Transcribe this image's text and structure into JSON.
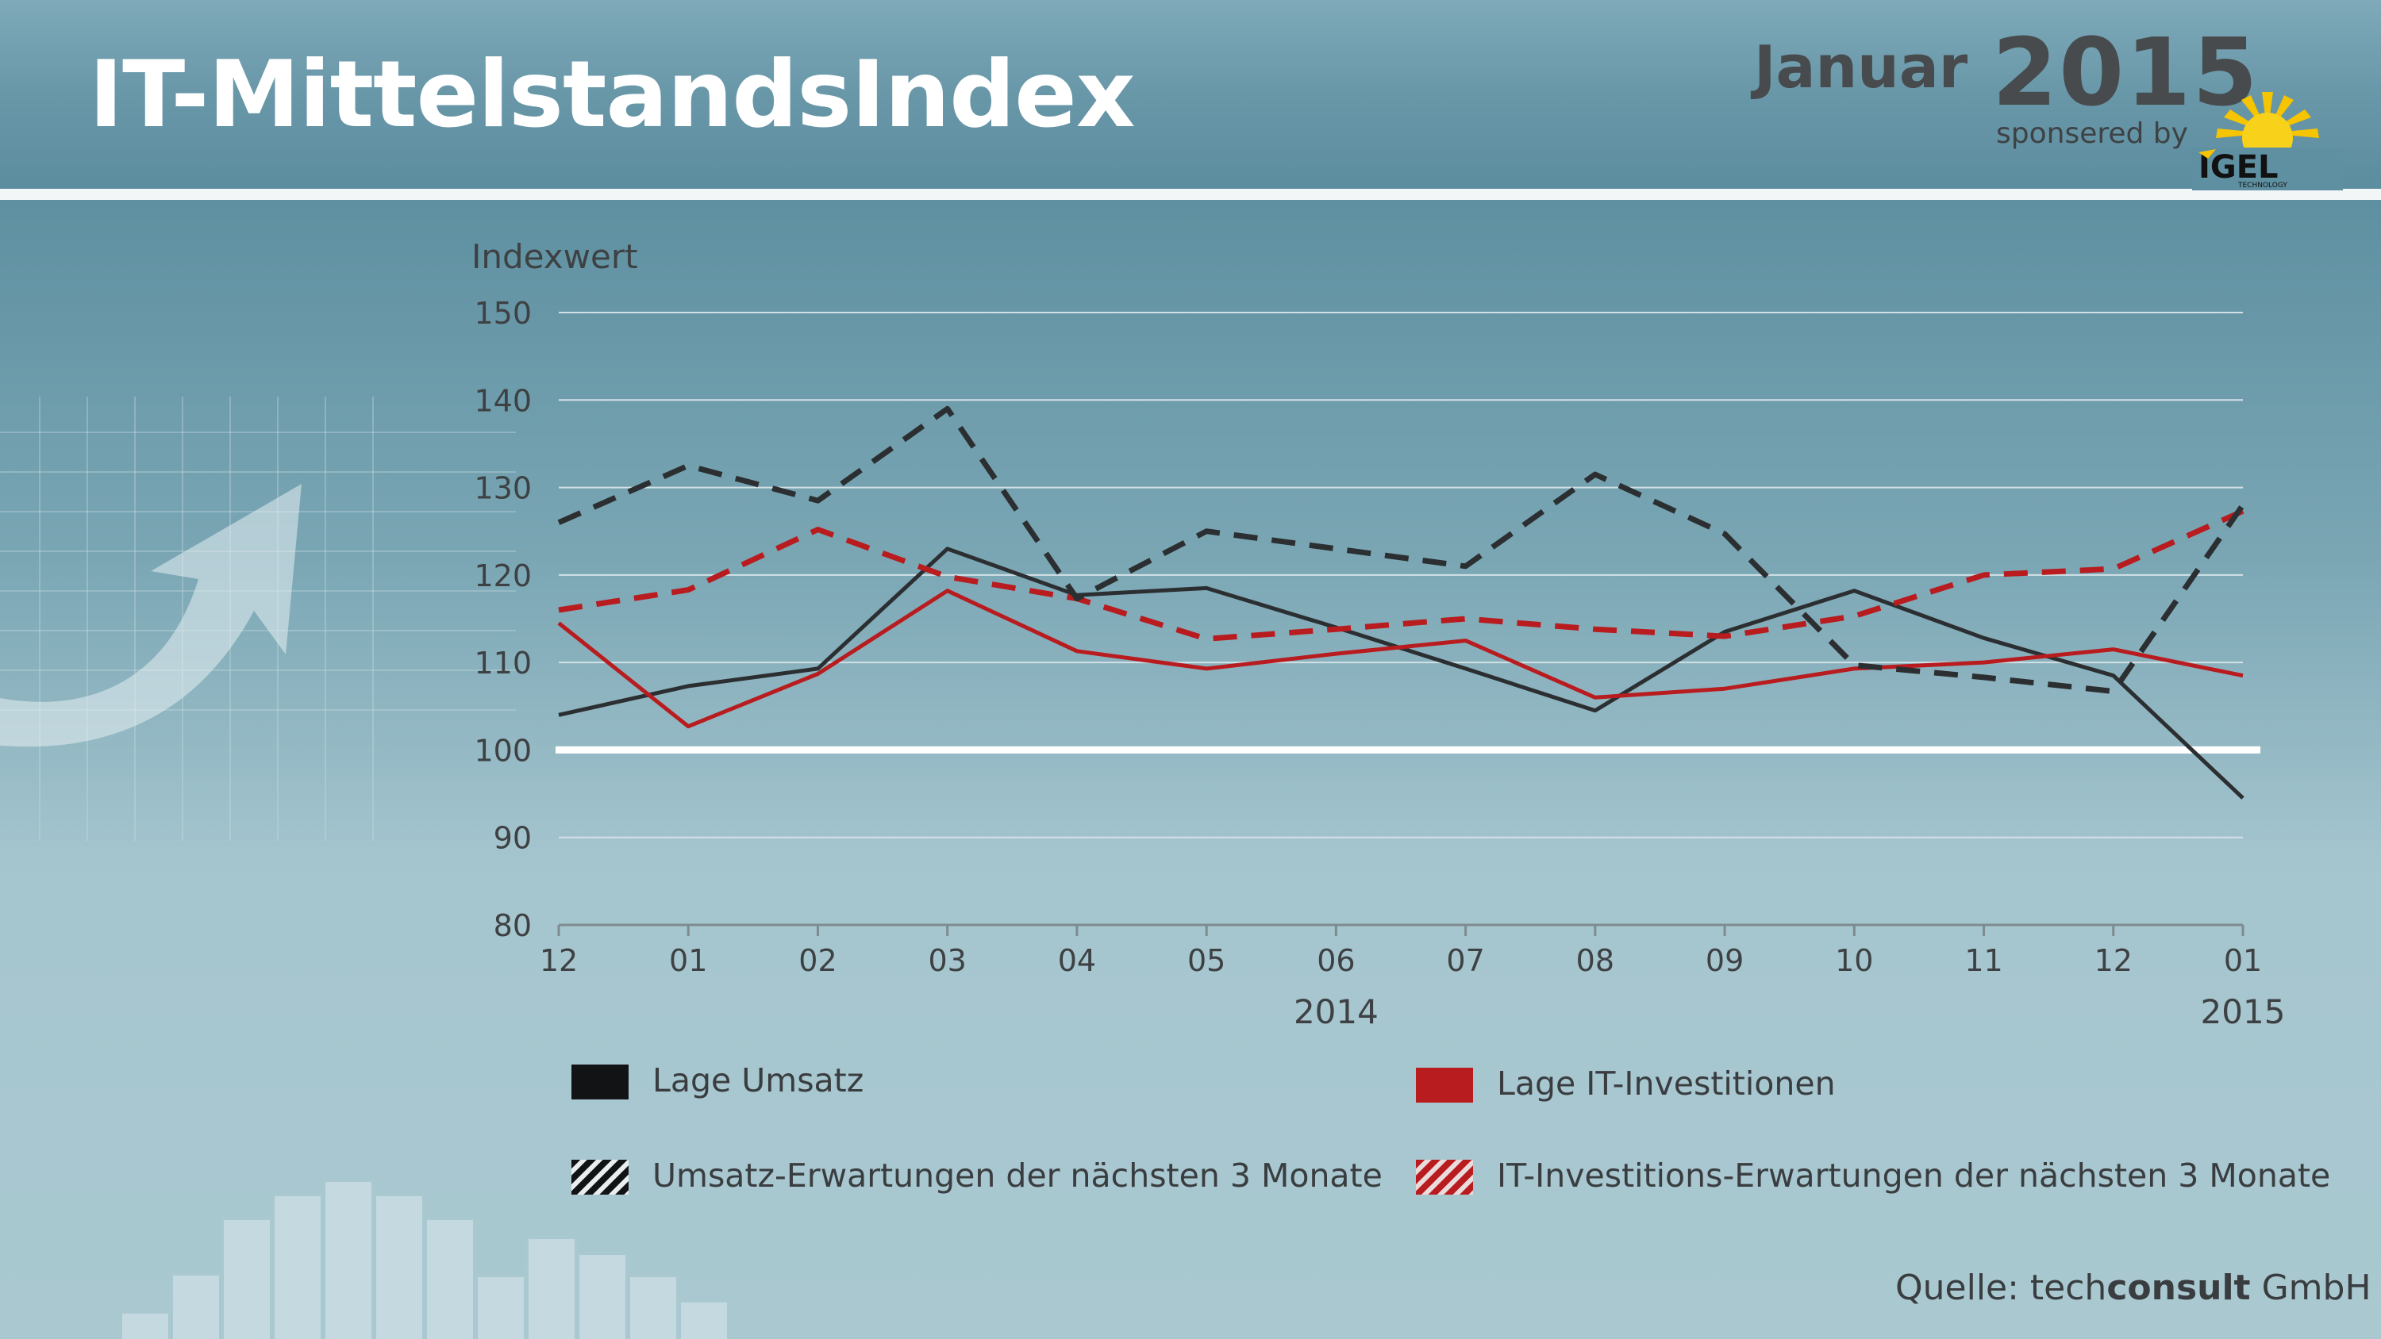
{
  "header": {
    "title": "IT-MittelstandsIndex",
    "month": "Januar",
    "year": "2015",
    "sponsor_text": "sponsered by",
    "logo_text": "IGEL",
    "logo_subtext": "TECHNOLOGY"
  },
  "colors": {
    "umsatz": "#2c2f31",
    "it": "#b81c1f",
    "baseline": "#ffffff",
    "grid": "#d3e1e6",
    "axis_text": "#3e4143"
  },
  "chart_data": {
    "type": "line",
    "ylabel": "Indexwert",
    "ylim": [
      80,
      150
    ],
    "yticks": [
      80,
      90,
      100,
      110,
      120,
      130,
      140,
      150
    ],
    "categories": [
      "12",
      "01",
      "02",
      "03",
      "04",
      "05",
      "06",
      "07",
      "08",
      "09",
      "10",
      "11",
      "12",
      "01"
    ],
    "year_labels": [
      {
        "label": "2014",
        "index": 6
      },
      {
        "label": "2015",
        "index": 13
      }
    ],
    "baseline": 100,
    "grid": true,
    "series": [
      {
        "name": "Lage Umsatz",
        "color": "#2c2f31",
        "style": "solid",
        "values": [
          104.0,
          107.3,
          109.3,
          123.0,
          117.7,
          118.5,
          114.0,
          109.3,
          104.5,
          113.5,
          118.2,
          112.8,
          108.5,
          94.5
        ]
      },
      {
        "name": "Lage IT-Investitionen",
        "color": "#b81c1f",
        "style": "solid",
        "values": [
          114.5,
          102.7,
          108.7,
          118.2,
          111.3,
          109.3,
          111.0,
          112.5,
          106.0,
          107.0,
          109.3,
          110.0,
          111.5,
          108.5
        ]
      },
      {
        "name": "Umsatz-Erwartungen der nächsten 3 Monate",
        "color": "#2c2f31",
        "style": "dashed",
        "values": [
          126.0,
          132.5,
          128.5,
          139.0,
          117.3,
          125.0,
          123.0,
          121.0,
          131.5,
          124.7,
          109.7,
          108.3,
          106.7,
          128.0
        ]
      },
      {
        "name": "IT-Investitions-Erwartungen der nächsten 3 Monate",
        "color": "#b81c1f",
        "style": "dashed",
        "values": [
          116.0,
          118.3,
          125.2,
          119.8,
          117.3,
          112.7,
          113.8,
          115.0,
          113.8,
          113.0,
          115.3,
          120.0,
          120.7,
          127.3
        ]
      }
    ]
  },
  "legend": {
    "lage_umsatz": "Lage Umsatz",
    "lage_it": "Lage IT-Investitionen",
    "erw_umsatz": "Umsatz-Erwartungen der nächsten 3 Monate",
    "erw_it": "IT-Investitions-Erwartungen der nächsten 3 Monate"
  },
  "source": {
    "prefix": "Quelle: tech",
    "brand": "consult",
    "suffix": " GmbH"
  }
}
